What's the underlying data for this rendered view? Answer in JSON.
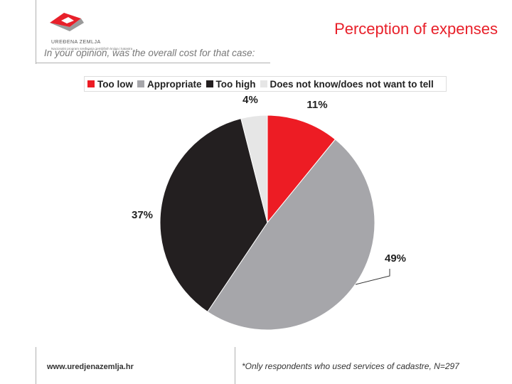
{
  "header": {
    "logo_name": "UREĐENA ZEMLJA",
    "logo_subtitle": "Nacionalni program sređivanja zemljišnih knjiga i katastra",
    "title": "Perception of expenses"
  },
  "question": "In your opinion, was the overall cost for that case:",
  "footer": {
    "url": "www.uredjenazemlja.hr",
    "note": "*Only respondents who used services of cadastre, N=297"
  },
  "colors": {
    "accent": "#e8202a",
    "logo_red": "#e8202a",
    "logo_gray": "#9a9a9a"
  },
  "chart_data": {
    "type": "pie",
    "title": "",
    "legend_position": "top",
    "slices": [
      {
        "name": "Too low",
        "value": 11,
        "label": "11%",
        "color": "#ed1c24"
      },
      {
        "name": "Appropriate",
        "value": 49,
        "label": "49%",
        "color": "#a6a6aa"
      },
      {
        "name": "Too high",
        "value": 37,
        "label": "37%",
        "color": "#231f20"
      },
      {
        "name": "Does not know/does not want to tell",
        "value": 4,
        "label": "4%",
        "color": "#e6e6e6"
      }
    ]
  }
}
